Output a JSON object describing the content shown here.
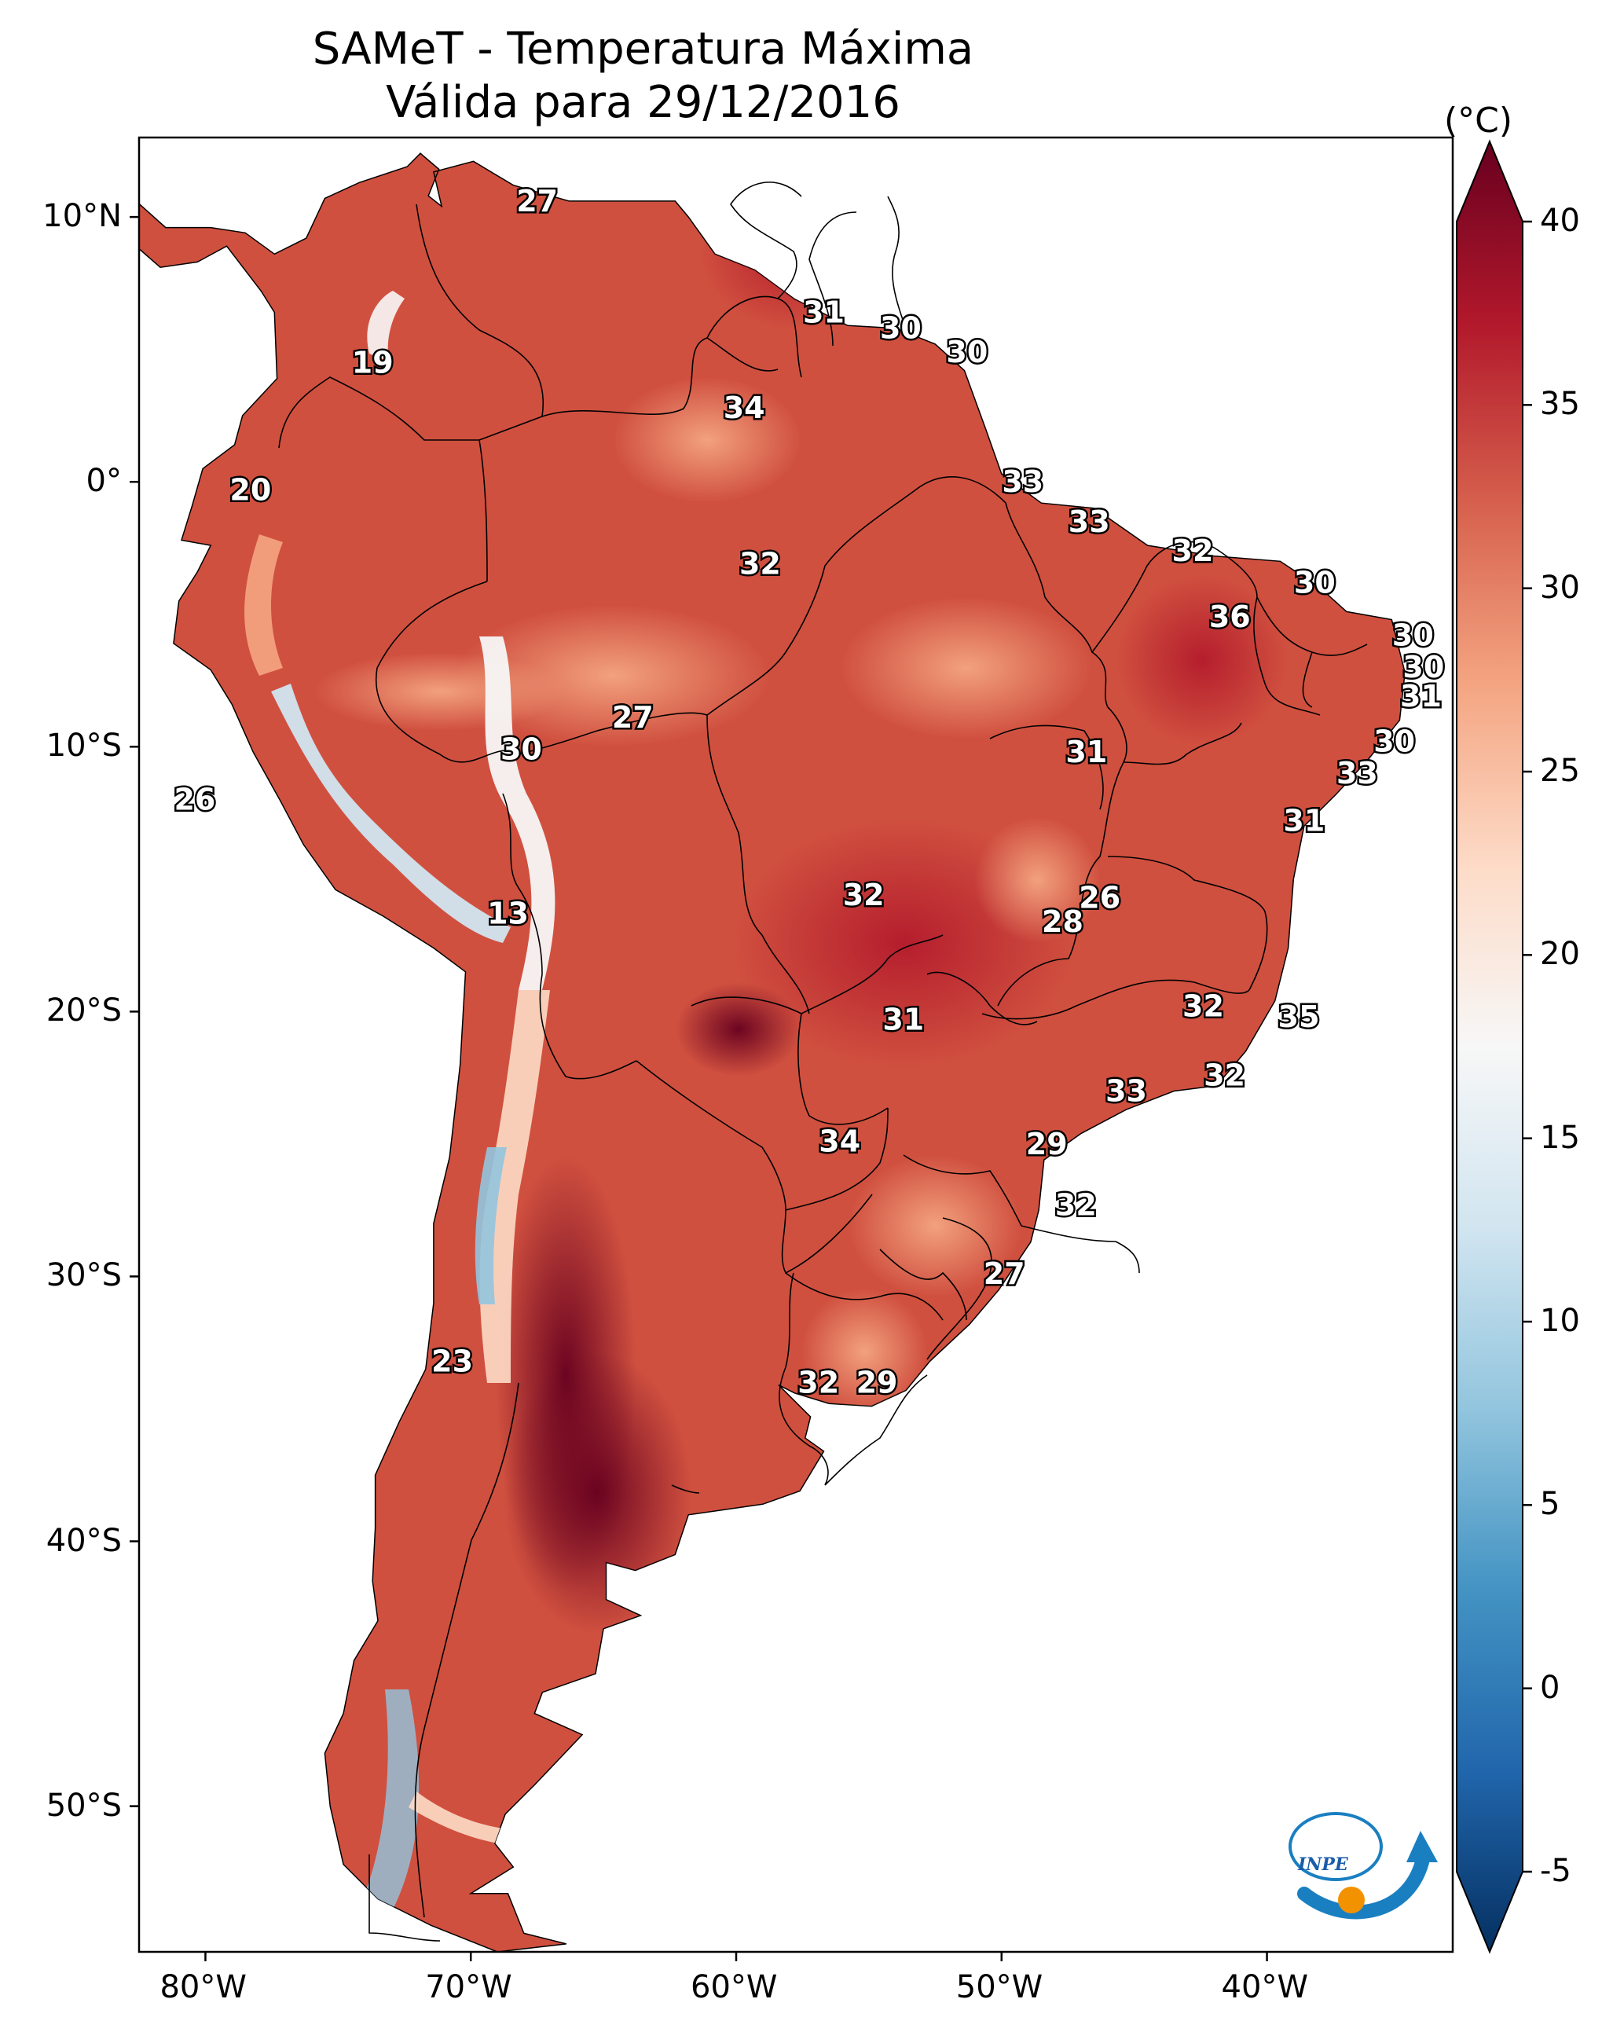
{
  "title_line1": "SAMeT - Temperatura Máxima",
  "title_line2": "Válida para 29/12/2016",
  "unit": "(°C)",
  "lat_ticks": [
    "10°N",
    "0°",
    "10°S",
    "20°S",
    "30°S",
    "40°S",
    "50°S"
  ],
  "lon_ticks": [
    "80°W",
    "70°W",
    "60°W",
    "50°W",
    "40°W"
  ],
  "colorbar": {
    "ticks": [
      "40",
      "35",
      "30",
      "25",
      "20",
      "15",
      "10",
      "5",
      "0",
      "-5"
    ],
    "min": -5,
    "max": 40,
    "colors": [
      "#053061",
      "#2166ac",
      "#4393c3",
      "#92c5de",
      "#d1e5f0",
      "#f7f7f7",
      "#fddbc7",
      "#f4a582",
      "#d6604d",
      "#b2182b",
      "#67001f"
    ]
  },
  "logo_text": "INPE",
  "labels": [
    {
      "t": "27",
      "lon": -67.5,
      "lat": 10.6
    },
    {
      "t": "19",
      "lon": -73.7,
      "lat": 4.5
    },
    {
      "t": "20",
      "lon": -78.3,
      "lat": -0.3
    },
    {
      "t": "31",
      "lon": -56.7,
      "lat": 6.4
    },
    {
      "t": "30",
      "lon": -53.8,
      "lat": 5.8
    },
    {
      "t": "30",
      "lon": -51.3,
      "lat": 4.9
    },
    {
      "t": "34",
      "lon": -59.7,
      "lat": 2.8
    },
    {
      "t": "33",
      "lon": -49.2,
      "lat": 0.0
    },
    {
      "t": "33",
      "lon": -46.7,
      "lat": -1.5
    },
    {
      "t": "32",
      "lon": -59.1,
      "lat": -3.1
    },
    {
      "t": "32",
      "lon": -42.8,
      "lat": -2.6
    },
    {
      "t": "30",
      "lon": -38.2,
      "lat": -3.8
    },
    {
      "t": "36",
      "lon": -41.4,
      "lat": -5.1
    },
    {
      "t": "30",
      "lon": -34.5,
      "lat": -5.8
    },
    {
      "t": "30",
      "lon": -34.1,
      "lat": -7.0
    },
    {
      "t": "31",
      "lon": -34.2,
      "lat": -8.1
    },
    {
      "t": "27",
      "lon": -63.9,
      "lat": -8.9
    },
    {
      "t": "30",
      "lon": -68.1,
      "lat": -10.1
    },
    {
      "t": "31",
      "lon": -46.8,
      "lat": -10.2
    },
    {
      "t": "30",
      "lon": -35.2,
      "lat": -9.8
    },
    {
      "t": "33",
      "lon": -36.6,
      "lat": -11.0
    },
    {
      "t": "26",
      "lon": -80.4,
      "lat": -12.0
    },
    {
      "t": "31",
      "lon": -38.6,
      "lat": -12.8
    },
    {
      "t": "32",
      "lon": -55.2,
      "lat": -15.6
    },
    {
      "t": "26",
      "lon": -46.3,
      "lat": -15.7
    },
    {
      "t": "28",
      "lon": -47.7,
      "lat": -16.6
    },
    {
      "t": "13",
      "lon": -68.6,
      "lat": -16.3
    },
    {
      "t": "32",
      "lon": -42.4,
      "lat": -19.8
    },
    {
      "t": "35",
      "lon": -38.8,
      "lat": -20.2
    },
    {
      "t": "31",
      "lon": -53.7,
      "lat": -20.3
    },
    {
      "t": "32",
      "lon": -41.6,
      "lat": -22.4
    },
    {
      "t": "33",
      "lon": -45.3,
      "lat": -23.0
    },
    {
      "t": "29",
      "lon": -48.3,
      "lat": -25.0
    },
    {
      "t": "34",
      "lon": -56.1,
      "lat": -24.9
    },
    {
      "t": "32",
      "lon": -47.2,
      "lat": -27.3
    },
    {
      "t": "27",
      "lon": -49.9,
      "lat": -29.9
    },
    {
      "t": "23",
      "lon": -70.7,
      "lat": -33.2
    },
    {
      "t": "32",
      "lon": -56.9,
      "lat": -34.0
    },
    {
      "t": "29",
      "lon": -54.7,
      "lat": -34.0
    }
  ]
}
